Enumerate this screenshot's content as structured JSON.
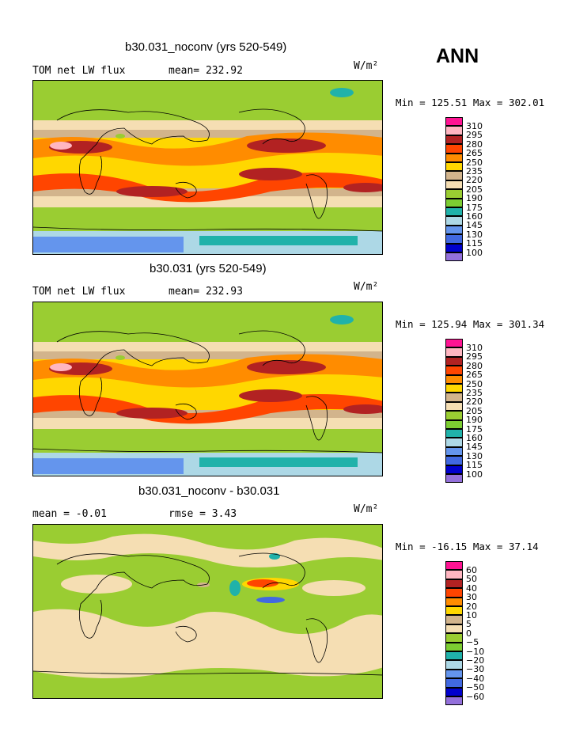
{
  "season": "ANN",
  "units_label": "W/m²",
  "panels": [
    {
      "title": "b30.031_noconv (yrs 520-549)",
      "left_label": "TOM net LW flux",
      "mid_label": "mean= 232.92",
      "minmax": "Min = 125.51 Max = 302.01",
      "colorbar": {
        "labels": [
          "310",
          "295",
          "280",
          "265",
          "250",
          "235",
          "220",
          "205",
          "190",
          "175",
          "160",
          "145",
          "130",
          "115",
          "100"
        ],
        "colors": [
          "#ff1493",
          "#ffb6c1",
          "#b22222",
          "#ff4500",
          "#ff8c00",
          "#ffd700",
          "#d2b48c",
          "#f5deb3",
          "#9acd32",
          "#7ccd32",
          "#20b2aa",
          "#add8e6",
          "#6495ed",
          "#4169e1",
          "#0000cd",
          "#9370db"
        ]
      }
    },
    {
      "title": "b30.031 (yrs 520-549)",
      "left_label": "TOM net LW flux",
      "mid_label": "mean= 232.93",
      "minmax": "Min = 125.94 Max = 301.34",
      "colorbar": {
        "labels": [
          "310",
          "295",
          "280",
          "265",
          "250",
          "235",
          "220",
          "205",
          "190",
          "175",
          "160",
          "145",
          "130",
          "115",
          "100"
        ],
        "colors": [
          "#ff1493",
          "#ffb6c1",
          "#b22222",
          "#ff4500",
          "#ff8c00",
          "#ffd700",
          "#d2b48c",
          "#f5deb3",
          "#9acd32",
          "#7ccd32",
          "#20b2aa",
          "#add8e6",
          "#6495ed",
          "#4169e1",
          "#0000cd",
          "#9370db"
        ]
      }
    },
    {
      "title": "b30.031_noconv - b30.031",
      "left_label": "mean =   -0.01",
      "mid_label": "rmse =    3.43",
      "minmax": "Min = -16.15 Max =  37.14",
      "colorbar": {
        "labels": [
          "60",
          "50",
          "40",
          "30",
          "20",
          "10",
          "5",
          "0",
          "−5",
          "−10",
          "−20",
          "−30",
          "−40",
          "−50",
          "−60"
        ],
        "colors": [
          "#ff1493",
          "#ffb6c1",
          "#b22222",
          "#ff4500",
          "#ff8c00",
          "#ffd700",
          "#d2b48c",
          "#f5deb3",
          "#9acd32",
          "#7ccd32",
          "#20b2aa",
          "#add8e6",
          "#6495ed",
          "#4169e1",
          "#0000cd",
          "#9370db"
        ]
      }
    }
  ],
  "chart_data": [
    {
      "type": "heatmap",
      "title": "b30.031_noconv (yrs 520-549)",
      "variable": "TOM net LW flux",
      "units": "W/m²",
      "mean": 232.92,
      "min": 125.51,
      "max": 302.01,
      "contour_levels": [
        100,
        115,
        130,
        145,
        160,
        175,
        190,
        205,
        220,
        235,
        250,
        265,
        280,
        295,
        310
      ]
    },
    {
      "type": "heatmap",
      "title": "b30.031 (yrs 520-549)",
      "variable": "TOM net LW flux",
      "units": "W/m²",
      "mean": 232.93,
      "min": 125.94,
      "max": 301.34,
      "contour_levels": [
        100,
        115,
        130,
        145,
        160,
        175,
        190,
        205,
        220,
        235,
        250,
        265,
        280,
        295,
        310
      ]
    },
    {
      "type": "heatmap",
      "title": "b30.031_noconv - b30.031",
      "units": "W/m²",
      "mean": -0.01,
      "rmse": 3.43,
      "min": -16.15,
      "max": 37.14,
      "contour_levels": [
        -60,
        -50,
        -40,
        -30,
        -20,
        -10,
        -5,
        0,
        5,
        10,
        20,
        30,
        40,
        50,
        60
      ]
    }
  ]
}
